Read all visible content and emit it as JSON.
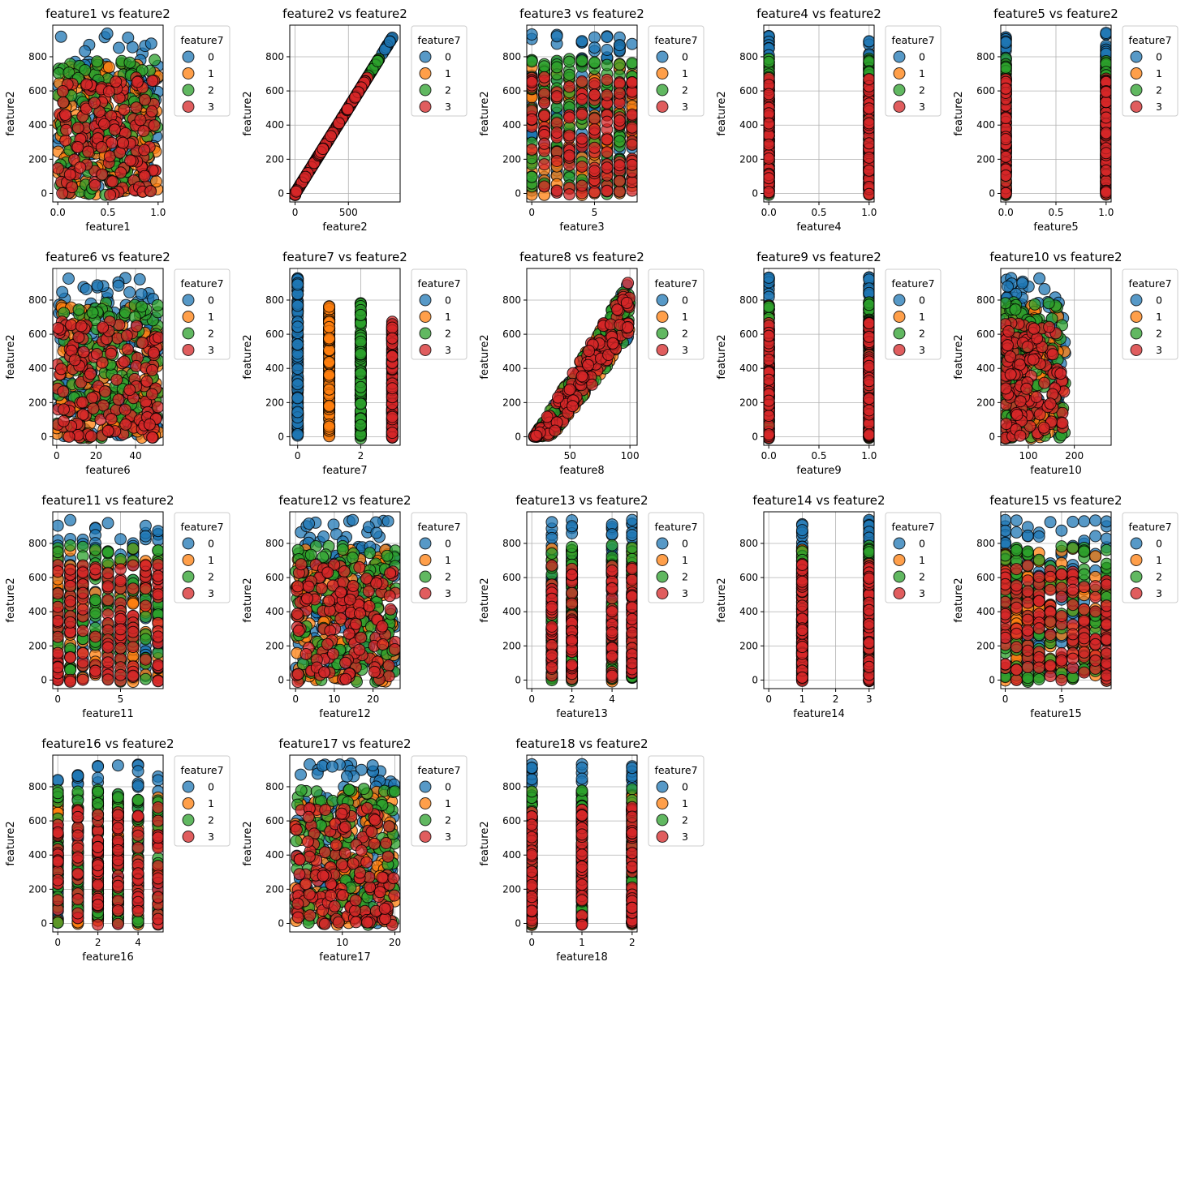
{
  "figure": {
    "legend_title": "feature7",
    "legend_labels": [
      "0",
      "1",
      "2",
      "3"
    ],
    "colors": [
      "#1f77b4",
      "#ff7f0e",
      "#2ca02c",
      "#d62728"
    ]
  },
  "chart_data": [
    {
      "type": "scatter",
      "title": "feature1 vs feature2",
      "xlabel": "feature1",
      "ylabel": "feature2",
      "xlim": [
        -0.05,
        1.05
      ],
      "ylim": [
        -50,
        985
      ],
      "xticks": [
        0.0,
        0.5,
        1.0
      ],
      "xtick_labels": [
        "0.0",
        "0.5",
        "1.0"
      ],
      "yticks": [
        0,
        200,
        400,
        600,
        800
      ],
      "grid": false,
      "legend": "outside-right",
      "pattern": "uniform",
      "xrange": [
        0,
        1
      ]
    },
    {
      "type": "scatter",
      "title": "feature2 vs feature2",
      "xlabel": "feature2",
      "ylabel": "feature2",
      "xlim": [
        -50,
        985
      ],
      "ylim": [
        -50,
        985
      ],
      "xticks": [
        0,
        500
      ],
      "xtick_labels": [
        "0",
        "500"
      ],
      "yticks": [
        0,
        200,
        400,
        600,
        800
      ],
      "grid": true,
      "legend": "outside-right",
      "pattern": "diagonal",
      "xrange": [
        0,
        940
      ]
    },
    {
      "type": "scatter",
      "title": "feature3 vs feature2",
      "xlabel": "feature3",
      "ylabel": "feature2",
      "xlim": [
        -0.4,
        8.4
      ],
      "ylim": [
        -50,
        985
      ],
      "xticks": [
        0,
        5
      ],
      "xtick_labels": [
        "0",
        "5"
      ],
      "yticks": [
        0,
        200,
        400,
        600,
        800
      ],
      "grid": true,
      "legend": "outside-right",
      "pattern": "discrete",
      "xvals": [
        0,
        1,
        2,
        3,
        4,
        5,
        6,
        7,
        8
      ]
    },
    {
      "type": "scatter",
      "title": "feature4 vs feature2",
      "xlabel": "feature4",
      "ylabel": "feature2",
      "xlim": [
        -0.05,
        1.05
      ],
      "ylim": [
        -50,
        985
      ],
      "xticks": [
        0.0,
        0.5,
        1.0
      ],
      "xtick_labels": [
        "0.0",
        "0.5",
        "1.0"
      ],
      "yticks": [
        0,
        200,
        400,
        600,
        800
      ],
      "grid": true,
      "legend": "outside-right",
      "pattern": "discrete",
      "xvals": [
        0,
        1
      ]
    },
    {
      "type": "scatter",
      "title": "feature5 vs feature2",
      "xlabel": "feature5",
      "ylabel": "feature2",
      "xlim": [
        -0.05,
        1.05
      ],
      "ylim": [
        -50,
        985
      ],
      "xticks": [
        0.0,
        0.5,
        1.0
      ],
      "xtick_labels": [
        "0.0",
        "0.5",
        "1.0"
      ],
      "yticks": [
        0,
        200,
        400,
        600,
        800
      ],
      "grid": true,
      "legend": "outside-right",
      "pattern": "discrete",
      "xvals": [
        0,
        1
      ]
    },
    {
      "type": "scatter",
      "title": "feature6 vs feature2",
      "xlabel": "feature6",
      "ylabel": "feature2",
      "xlim": [
        -2,
        54
      ],
      "ylim": [
        -50,
        985
      ],
      "xticks": [
        0,
        20,
        40
      ],
      "xtick_labels": [
        "0",
        "20",
        "40"
      ],
      "yticks": [
        0,
        200,
        400,
        600,
        800
      ],
      "grid": true,
      "legend": "outside-right",
      "pattern": "clustered",
      "xrange": [
        0,
        52
      ]
    },
    {
      "type": "scatter",
      "title": "feature7 vs feature2",
      "xlabel": "feature7",
      "ylabel": "feature2",
      "xlim": [
        -0.25,
        3.25
      ],
      "ylim": [
        -50,
        985
      ],
      "xticks": [
        0,
        2
      ],
      "xtick_labels": [
        "0",
        "2"
      ],
      "yticks": [
        0,
        200,
        400,
        600,
        800
      ],
      "grid": true,
      "legend": "outside-right",
      "pattern": "byclass",
      "xvals": [
        0,
        1,
        2,
        3
      ]
    },
    {
      "type": "scatter",
      "title": "feature8 vs feature2",
      "xlabel": "feature8",
      "ylabel": "feature2",
      "xlim": [
        14,
        106
      ],
      "ylim": [
        -50,
        985
      ],
      "xticks": [
        50,
        100
      ],
      "xtick_labels": [
        "50",
        "100"
      ],
      "yticks": [
        0,
        200,
        400,
        600,
        800
      ],
      "grid": true,
      "legend": "outside-right",
      "pattern": "wedge",
      "xrange": [
        20,
        100
      ]
    },
    {
      "type": "scatter",
      "title": "feature9 vs feature2",
      "xlabel": "feature9",
      "ylabel": "feature2",
      "xlim": [
        -0.05,
        1.05
      ],
      "ylim": [
        -50,
        985
      ],
      "xticks": [
        0.0,
        0.5,
        1.0
      ],
      "xtick_labels": [
        "0.0",
        "0.5",
        "1.0"
      ],
      "yticks": [
        0,
        200,
        400,
        600,
        800
      ],
      "grid": true,
      "legend": "outside-right",
      "pattern": "discrete",
      "xvals": [
        0,
        1
      ]
    },
    {
      "type": "scatter",
      "title": "feature10 vs feature2",
      "xlabel": "feature10",
      "ylabel": "feature2",
      "xlim": [
        40,
        280
      ],
      "ylim": [
        -50,
        985
      ],
      "xticks": [
        100,
        200
      ],
      "xtick_labels": [
        "100",
        "200"
      ],
      "yticks": [
        0,
        200,
        400,
        600,
        800
      ],
      "grid": true,
      "legend": "outside-right",
      "pattern": "skewed",
      "xrange": [
        50,
        180
      ]
    },
    {
      "type": "scatter",
      "title": "feature11 vs feature2",
      "xlabel": "feature11",
      "ylabel": "feature2",
      "xlim": [
        -0.4,
        8.4
      ],
      "ylim": [
        -50,
        985
      ],
      "xticks": [
        0,
        5
      ],
      "xtick_labels": [
        "0",
        "5"
      ],
      "yticks": [
        0,
        200,
        400,
        600,
        800
      ],
      "grid": true,
      "legend": "outside-right",
      "pattern": "discrete",
      "xvals": [
        0,
        1,
        2,
        3,
        4,
        5,
        6,
        7,
        8
      ]
    },
    {
      "type": "scatter",
      "title": "feature12 vs feature2",
      "xlabel": "feature12",
      "ylabel": "feature2",
      "xlim": [
        -1.5,
        27
      ],
      "ylim": [
        -50,
        985
      ],
      "xticks": [
        0,
        10,
        20
      ],
      "xtick_labels": [
        "0",
        "10",
        "20"
      ],
      "yticks": [
        0,
        200,
        400,
        600,
        800
      ],
      "grid": true,
      "legend": "outside-right",
      "pattern": "uniform",
      "xrange": [
        0,
        26
      ]
    },
    {
      "type": "scatter",
      "title": "feature13 vs feature2",
      "xlabel": "feature13",
      "ylabel": "feature2",
      "xlim": [
        -0.25,
        5.25
      ],
      "ylim": [
        -50,
        985
      ],
      "xticks": [
        0,
        2,
        4
      ],
      "xtick_labels": [
        "0",
        "2",
        "4"
      ],
      "yticks": [
        0,
        200,
        400,
        600,
        800
      ],
      "grid": true,
      "legend": "outside-right",
      "pattern": "discrete",
      "xvals": [
        1,
        2,
        4,
        5
      ]
    },
    {
      "type": "scatter",
      "title": "feature14 vs feature2",
      "xlabel": "feature14",
      "ylabel": "feature2",
      "xlim": [
        -0.15,
        3.15
      ],
      "ylim": [
        -50,
        985
      ],
      "xticks": [
        0,
        1,
        2,
        3
      ],
      "xtick_labels": [
        "0",
        "1",
        "2",
        "3"
      ],
      "yticks": [
        0,
        200,
        400,
        600,
        800
      ],
      "grid": true,
      "legend": "outside-right",
      "pattern": "discrete",
      "xvals": [
        1,
        3
      ]
    },
    {
      "type": "scatter",
      "title": "feature15 vs feature2",
      "xlabel": "feature15",
      "ylabel": "feature2",
      "xlim": [
        -0.4,
        9.4
      ],
      "ylim": [
        -50,
        985
      ],
      "xticks": [
        0,
        5
      ],
      "xtick_labels": [
        "0",
        "5"
      ],
      "yticks": [
        0,
        200,
        400,
        600,
        800
      ],
      "grid": true,
      "legend": "outside-right",
      "pattern": "discrete",
      "xvals": [
        0,
        1,
        2,
        3,
        4,
        5,
        6,
        7,
        8,
        9
      ]
    },
    {
      "type": "scatter",
      "title": "feature16 vs feature2",
      "xlabel": "feature16",
      "ylabel": "feature2",
      "xlim": [
        -0.25,
        5.25
      ],
      "ylim": [
        -50,
        985
      ],
      "xticks": [
        0,
        2,
        4
      ],
      "xtick_labels": [
        "0",
        "2",
        "4"
      ],
      "yticks": [
        0,
        200,
        400,
        600,
        800
      ],
      "grid": true,
      "legend": "outside-right",
      "pattern": "discrete",
      "xvals": [
        0,
        1,
        2,
        3,
        4,
        5
      ]
    },
    {
      "type": "scatter",
      "title": "feature17 vs feature2",
      "xlabel": "feature17",
      "ylabel": "feature2",
      "xlim": [
        0,
        21
      ],
      "ylim": [
        -50,
        985
      ],
      "xticks": [
        10,
        20
      ],
      "xtick_labels": [
        "10",
        "20"
      ],
      "yticks": [
        0,
        200,
        400,
        600,
        800
      ],
      "grid": true,
      "legend": "outside-right",
      "pattern": "uniform",
      "xrange": [
        1,
        20
      ]
    },
    {
      "type": "scatter",
      "title": "feature18 vs feature2",
      "xlabel": "feature18",
      "ylabel": "feature2",
      "xlim": [
        -0.1,
        2.1
      ],
      "ylim": [
        -50,
        985
      ],
      "xticks": [
        0,
        1,
        2
      ],
      "xtick_labels": [
        "0",
        "1",
        "2"
      ],
      "yticks": [
        0,
        200,
        400,
        600,
        800
      ],
      "grid": true,
      "legend": "outside-right",
      "pattern": "discrete",
      "xvals": [
        0,
        1,
        2
      ]
    }
  ]
}
